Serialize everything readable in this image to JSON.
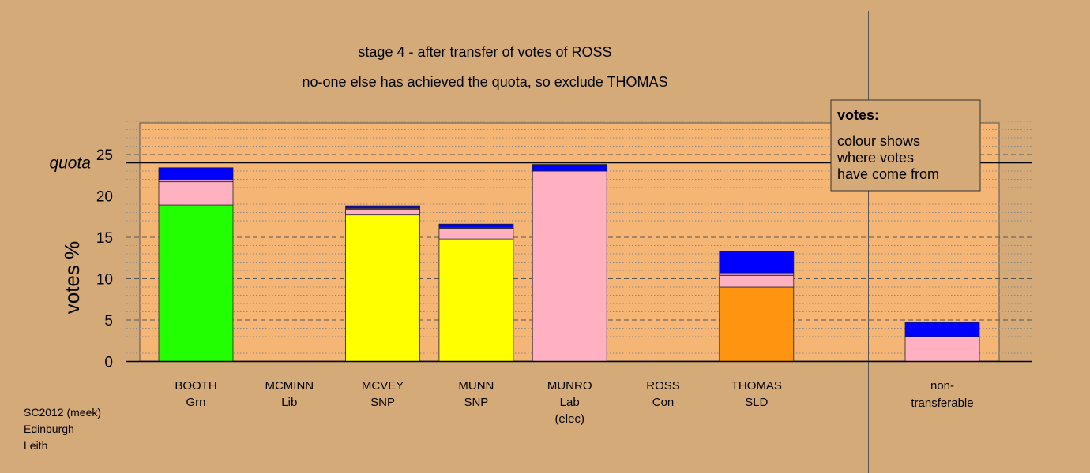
{
  "chart_data": {
    "type": "bar",
    "stacked": true,
    "title": "stage 4 - after transfer of votes of ROSS",
    "subtitle": "no-one else has achieved the quota, so exclude THOMAS",
    "ylabel": "votes %",
    "ylim": [
      0,
      29
    ],
    "yticks": [
      0,
      5,
      10,
      15,
      20,
      25
    ],
    "quota": 24,
    "quota_label": "quota",
    "categories": [
      {
        "name": "BOOTH",
        "party": "Grn",
        "note": ""
      },
      {
        "name": "MCMINN",
        "party": "Lib",
        "note": ""
      },
      {
        "name": "MCVEY",
        "party": "SNP",
        "note": ""
      },
      {
        "name": "MUNN",
        "party": "SNP",
        "note": ""
      },
      {
        "name": "MUNRO",
        "party": "Lab",
        "note": "(elec)"
      },
      {
        "name": "ROSS",
        "party": "Con",
        "note": ""
      },
      {
        "name": "THOMAS",
        "party": "SLD",
        "note": ""
      }
    ],
    "bars": [
      {
        "segments": [
          {
            "value": 18.9,
            "color": "#22ff00"
          },
          {
            "value": 2.8,
            "color": "#ffb1c1"
          },
          {
            "value": 0.3,
            "color": "#d99acd"
          },
          {
            "value": 1.4,
            "color": "#0000ff"
          }
        ]
      },
      {
        "segments": []
      },
      {
        "segments": [
          {
            "value": 17.7,
            "color": "#ffff00"
          },
          {
            "value": 0.7,
            "color": "#ffb1c1"
          },
          {
            "value": 0.1,
            "color": "#d99acd"
          },
          {
            "value": 0.3,
            "color": "#0000ff"
          }
        ]
      },
      {
        "segments": [
          {
            "value": 14.8,
            "color": "#ffff00"
          },
          {
            "value": 1.3,
            "color": "#ffb1c1"
          },
          {
            "value": 0.1,
            "color": "#d99acd"
          },
          {
            "value": 0.4,
            "color": "#0000ff"
          }
        ]
      },
      {
        "segments": [
          {
            "value": 23.0,
            "color": "#ffb1c1"
          },
          {
            "value": 0.8,
            "color": "#0000ff"
          }
        ]
      },
      {
        "segments": []
      },
      {
        "segments": [
          {
            "value": 9.0,
            "color": "#ff9410"
          },
          {
            "value": 1.4,
            "color": "#ffb1c1"
          },
          {
            "value": 0.3,
            "color": "#d99acd"
          },
          {
            "value": 2.6,
            "color": "#0000ff"
          }
        ]
      }
    ],
    "nontransferable": {
      "label_line1": "non-",
      "label_line2": "transferable",
      "segments": [
        {
          "value": 3.0,
          "color": "#ffb1c1"
        },
        {
          "value": 1.7,
          "color": "#0000ff"
        }
      ]
    },
    "legend": {
      "title": "votes:",
      "lines": [
        "colour shows",
        "where votes",
        "have come from"
      ],
      "placement": "top-right"
    }
  },
  "footer": {
    "line1": "SC2012 (meek)",
    "line2": "Edinburgh",
    "line3": "Leith"
  },
  "colors": {
    "background": "#d4aa78",
    "plot_area": "#f5b575"
  }
}
